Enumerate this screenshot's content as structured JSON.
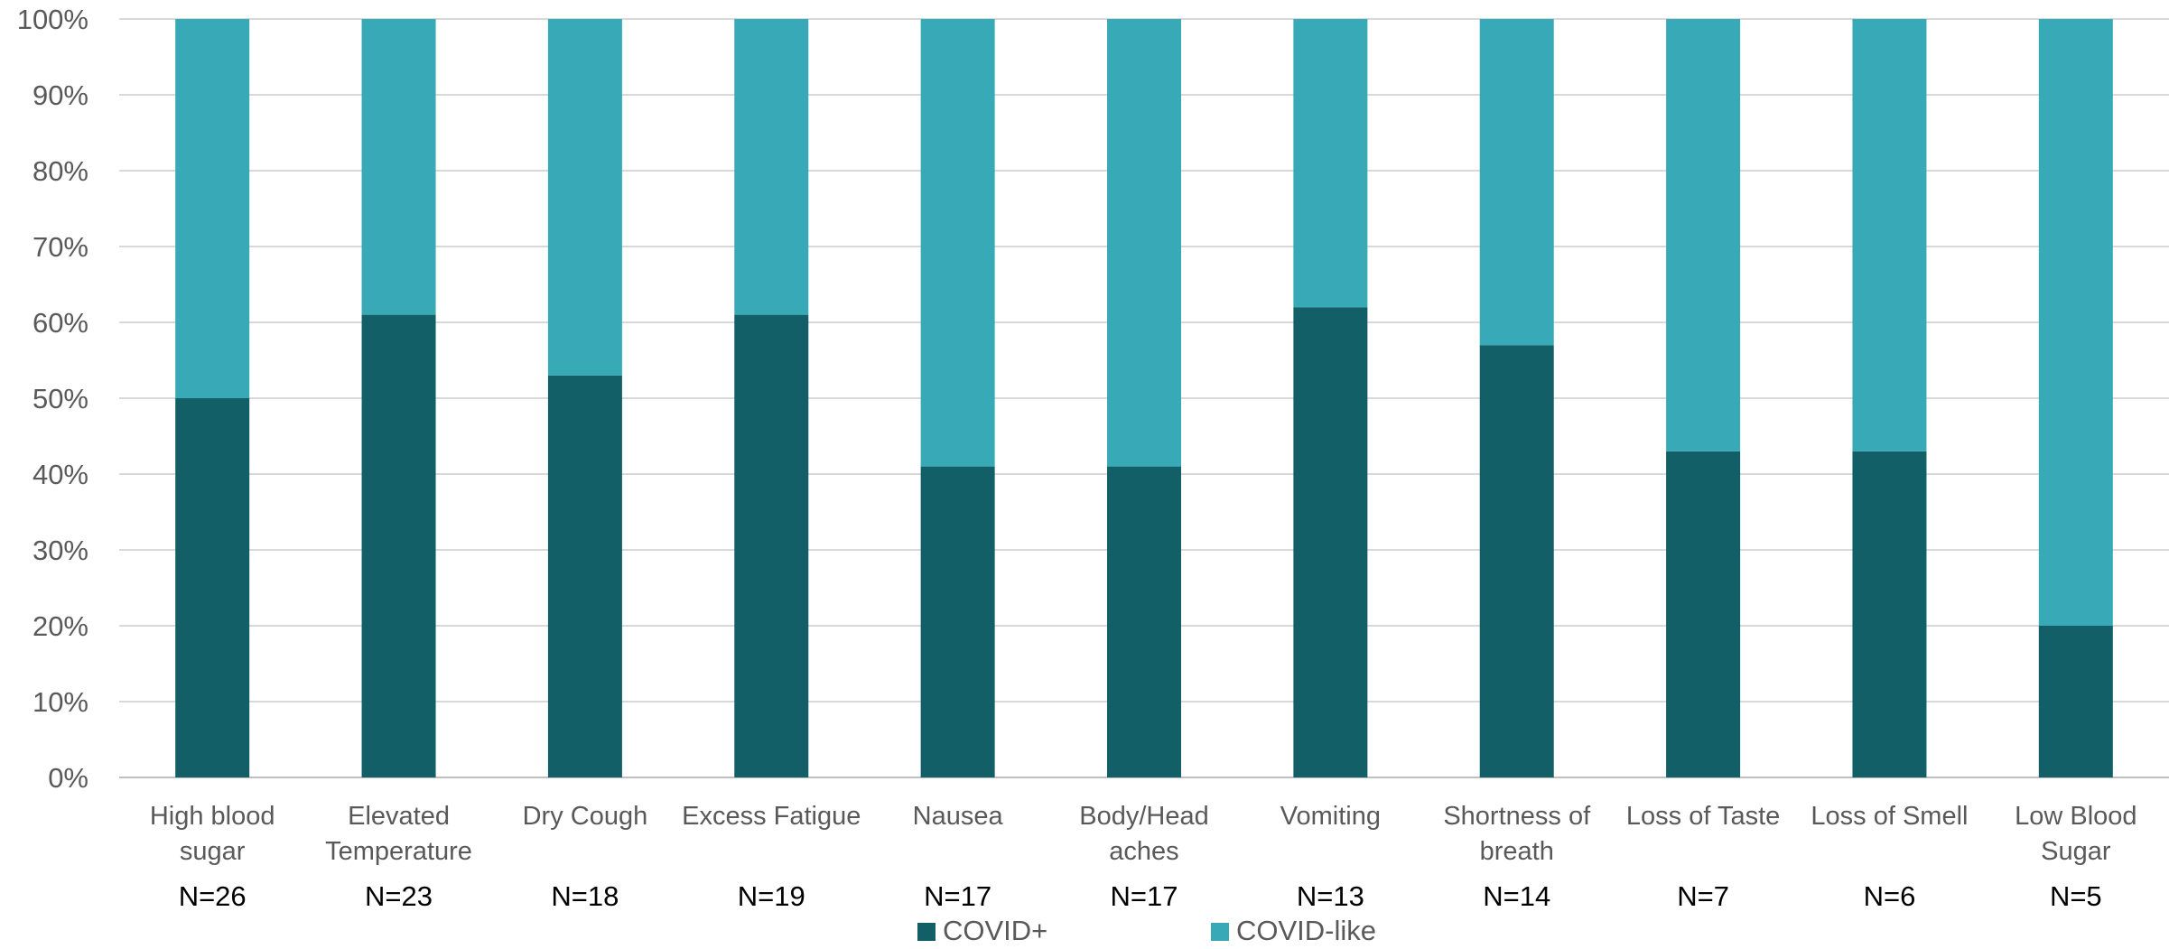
{
  "chart_data": {
    "type": "bar",
    "stacked": true,
    "percent": true,
    "categories": [
      [
        "High blood",
        "sugar"
      ],
      [
        "Elevated",
        "Temperature"
      ],
      [
        "Dry Cough"
      ],
      [
        "Excess Fatigue"
      ],
      [
        "Nausea"
      ],
      [
        "Body/Head",
        "aches"
      ],
      [
        "Vomiting"
      ],
      [
        "Shortness of",
        "breath"
      ],
      [
        "Loss of Taste"
      ],
      [
        "Loss of Smell"
      ],
      [
        "Low Blood",
        "Sugar"
      ]
    ],
    "n_labels": [
      "N=26",
      "N=23",
      "N=18",
      "N=19",
      "N=17",
      "N=17",
      "N=13",
      "N=14",
      "N=7",
      "N=6",
      "N=5"
    ],
    "series": [
      {
        "name": "COVID+",
        "color": "#135f67",
        "values": [
          0.5,
          0.61,
          0.53,
          0.61,
          0.41,
          0.41,
          0.62,
          0.57,
          0.43,
          0.43,
          0.2
        ]
      },
      {
        "name": "COVID-like",
        "color": "#38aab7",
        "values": [
          0.5,
          0.39,
          0.47,
          0.39,
          0.59,
          0.59,
          0.38,
          0.43,
          0.57,
          0.57,
          0.8
        ]
      }
    ],
    "y_ticks": [
      "0%",
      "10%",
      "20%",
      "30%",
      "40%",
      "50%",
      "60%",
      "70%",
      "80%",
      "90%",
      "100%"
    ],
    "ylim": [
      0,
      1
    ],
    "grid": true,
    "legend_position": "bottom"
  }
}
